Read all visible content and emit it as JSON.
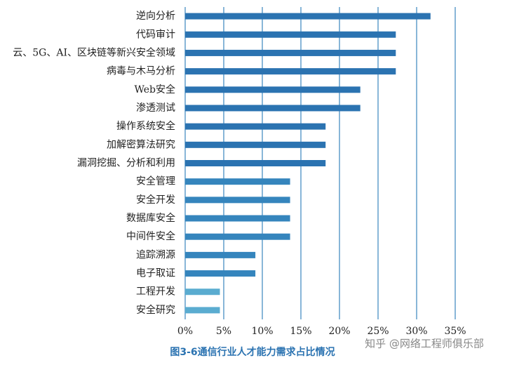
{
  "chart_data": {
    "type": "hbar",
    "caption": "图3-6通信行业人才能力需求占比情况",
    "watermark": "知乎 @网络工程师俱乐部",
    "categories": [
      "逆向分析",
      "代码审计",
      "云、5G、AI、区块链等新兴安全领域",
      "病毒与木马分析",
      "Web安全",
      "渗透测试",
      "操作系统安全",
      "加解密算法研究",
      "漏洞挖掘、分析和利用",
      "安全管理",
      "安全开发",
      "数据库安全",
      "中间件安全",
      "追踪溯源",
      "电子取证",
      "工程开发",
      "安全研究"
    ],
    "values": [
      31.8,
      27.3,
      27.3,
      27.3,
      22.7,
      22.7,
      18.2,
      18.2,
      18.2,
      13.6,
      13.6,
      13.6,
      13.6,
      9.1,
      9.1,
      4.5,
      4.5
    ],
    "colors": [
      "#2b73b1",
      "#2b73b1",
      "#2b73b1",
      "#2b73b1",
      "#2b73b1",
      "#2b73b1",
      "#2b73b1",
      "#2b73b1",
      "#2b73b1",
      "#3585bd",
      "#3585bd",
      "#3585bd",
      "#3585bd",
      "#3585bd",
      "#3585bd",
      "#5aacd0",
      "#5aacd0"
    ],
    "xlim": [
      0,
      35
    ],
    "xticks": [
      {
        "value": 0,
        "label": "0%"
      },
      {
        "value": 5,
        "label": "5%"
      },
      {
        "value": 10,
        "label": "10%"
      },
      {
        "value": 15,
        "label": "15%"
      },
      {
        "value": 20,
        "label": "20%"
      },
      {
        "value": 25,
        "label": "25%"
      },
      {
        "value": 30,
        "label": "30%"
      },
      {
        "value": 35,
        "label": "35%"
      }
    ],
    "grid": true
  }
}
